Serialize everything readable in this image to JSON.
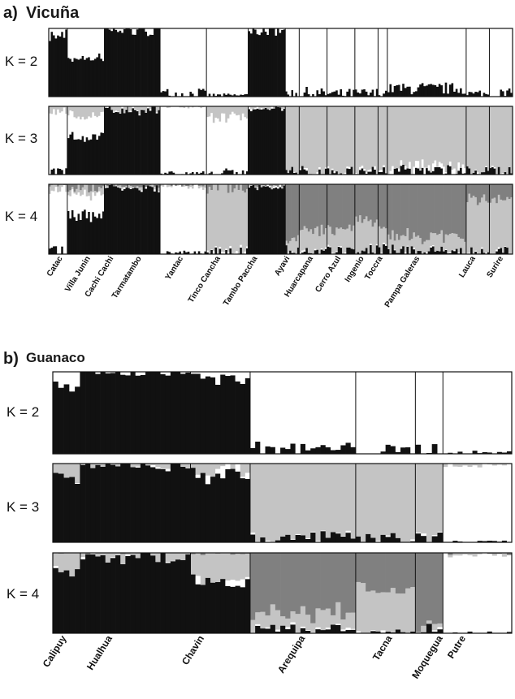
{
  "colors": {
    "cluster1": "#111111",
    "cluster2": "#ffffff",
    "cluster3": "#c4c4c4",
    "cluster4": "#808080",
    "frame": "#111111"
  },
  "chart_data": [
    {
      "type": "bar",
      "stacked": true,
      "panel_letter": "a)",
      "panel_title": "Vicuña",
      "populations": [
        "Catac",
        "Villa Junin",
        "Cachi Cachi",
        "Tarmatambo",
        "Yantac",
        "Tinco Cancha",
        "Tambo Paccha",
        "Ayavi",
        "Huarcapana",
        "Cerro Azul",
        "Ingenio",
        "Toccra",
        "Pampa Galeras",
        "Lauca",
        "Surire"
      ],
      "population_boundaries_fraction_of_individuals": [
        0.0,
        0.04,
        0.12,
        0.17,
        0.24,
        0.34,
        0.43,
        0.51,
        0.54,
        0.6,
        0.66,
        0.71,
        0.73,
        0.9,
        0.95,
        1.0
      ],
      "population_label_positions": [
        0.03,
        0.09,
        0.14,
        0.2,
        0.29,
        0.37,
        0.45,
        0.52,
        0.57,
        0.63,
        0.68,
        0.72,
        0.8,
        0.92,
        0.98
      ],
      "rows": [
        {
          "label": "K = 2",
          "k": 2,
          "population_cluster_proportions": [
            [
              0.9,
              0.1
            ],
            [
              0.55,
              0.45
            ],
            [
              0.97,
              0.03
            ],
            [
              0.97,
              0.03
            ],
            [
              0.04,
              0.96
            ],
            [
              0.02,
              0.98
            ],
            [
              0.97,
              0.03
            ],
            [
              0.05,
              0.95
            ],
            [
              0.05,
              0.95
            ],
            [
              0.04,
              0.95
            ],
            [
              0.04,
              0.96
            ],
            [
              0.06,
              0.94
            ],
            [
              0.12,
              0.88
            ],
            [
              0.03,
              0.97
            ],
            [
              0.03,
              0.97
            ]
          ]
        },
        {
          "label": "K = 3",
          "k": 3,
          "population_cluster_proportions": [
            [
              0.03,
              0.92,
              0.05
            ],
            [
              0.55,
              0.3,
              0.15
            ],
            [
              0.97,
              0.0,
              0.03
            ],
            [
              0.97,
              0.0,
              0.03
            ],
            [
              0.02,
              0.98,
              0.0
            ],
            [
              0.03,
              0.8,
              0.17
            ],
            [
              0.97,
              0.01,
              0.02
            ],
            [
              0.04,
              0.0,
              0.96
            ],
            [
              0.04,
              0.01,
              0.95
            ],
            [
              0.04,
              0.01,
              0.95
            ],
            [
              0.04,
              0.02,
              0.94
            ],
            [
              0.05,
              0.01,
              0.94
            ],
            [
              0.07,
              0.04,
              0.89
            ],
            [
              0.04,
              0.0,
              0.96
            ],
            [
              0.04,
              0.01,
              0.95
            ]
          ]
        },
        {
          "label": "K = 4",
          "k": 4,
          "population_cluster_proportions": [
            [
              0.03,
              0.92,
              0.04,
              0.01
            ],
            [
              0.55,
              0.3,
              0.1,
              0.05
            ],
            [
              0.96,
              0.0,
              0.02,
              0.02
            ],
            [
              0.96,
              0.0,
              0.02,
              0.02
            ],
            [
              0.02,
              0.96,
              0.02,
              0.0
            ],
            [
              0.03,
              0.02,
              0.9,
              0.05
            ],
            [
              0.96,
              0.01,
              0.02,
              0.01
            ],
            [
              0.04,
              0.0,
              0.16,
              0.8
            ],
            [
              0.04,
              0.0,
              0.3,
              0.66
            ],
            [
              0.04,
              0.0,
              0.3,
              0.66
            ],
            [
              0.04,
              0.0,
              0.45,
              0.51
            ],
            [
              0.05,
              0.0,
              0.3,
              0.65
            ],
            [
              0.05,
              0.0,
              0.2,
              0.75
            ],
            [
              0.03,
              0.0,
              0.75,
              0.22
            ],
            [
              0.03,
              0.0,
              0.75,
              0.22
            ]
          ]
        }
      ]
    },
    {
      "type": "bar",
      "stacked": true,
      "panel_letter": "b)",
      "panel_title": "Guanaco",
      "populations": [
        "Calipuy",
        "Hualhua",
        "Chavin",
        "Arequipa",
        "Tacna",
        "Moquegua",
        "Putre"
      ],
      "population_boundaries_fraction_of_individuals": [
        0.0,
        0.06,
        0.3,
        0.43,
        0.66,
        0.79,
        0.85,
        1.0
      ],
      "population_label_positions": [
        0.03,
        0.13,
        0.33,
        0.55,
        0.74,
        0.85,
        0.9
      ],
      "rows": [
        {
          "label": "K = 2",
          "k": 2,
          "population_cluster_proportions": [
            [
              0.8,
              0.2
            ],
            [
              0.98,
              0.02
            ],
            [
              0.9,
              0.1
            ],
            [
              0.06,
              0.94
            ],
            [
              0.03,
              0.97
            ],
            [
              0.06,
              0.94
            ],
            [
              0.01,
              0.99
            ]
          ]
        },
        {
          "label": "K = 3",
          "k": 3,
          "population_cluster_proportions": [
            [
              0.8,
              0.0,
              0.2
            ],
            [
              0.97,
              0.0,
              0.03
            ],
            [
              0.85,
              0.06,
              0.09
            ],
            [
              0.05,
              0.0,
              0.95
            ],
            [
              0.03,
              0.0,
              0.97
            ],
            [
              0.06,
              0.0,
              0.94
            ],
            [
              0.0,
              0.98,
              0.02
            ]
          ]
        },
        {
          "label": "K = 4",
          "k": 4,
          "population_cluster_proportions": [
            [
              0.75,
              0.0,
              0.25,
              0.0
            ],
            [
              0.96,
              0.0,
              0.04,
              0.0
            ],
            [
              0.65,
              0.04,
              0.31,
              0.0
            ],
            [
              0.05,
              0.0,
              0.2,
              0.75
            ],
            [
              0.02,
              0.0,
              0.55,
              0.43
            ],
            [
              0.05,
              0.0,
              0.1,
              0.85
            ],
            [
              0.0,
              0.98,
              0.02,
              0.0
            ]
          ]
        }
      ]
    }
  ]
}
